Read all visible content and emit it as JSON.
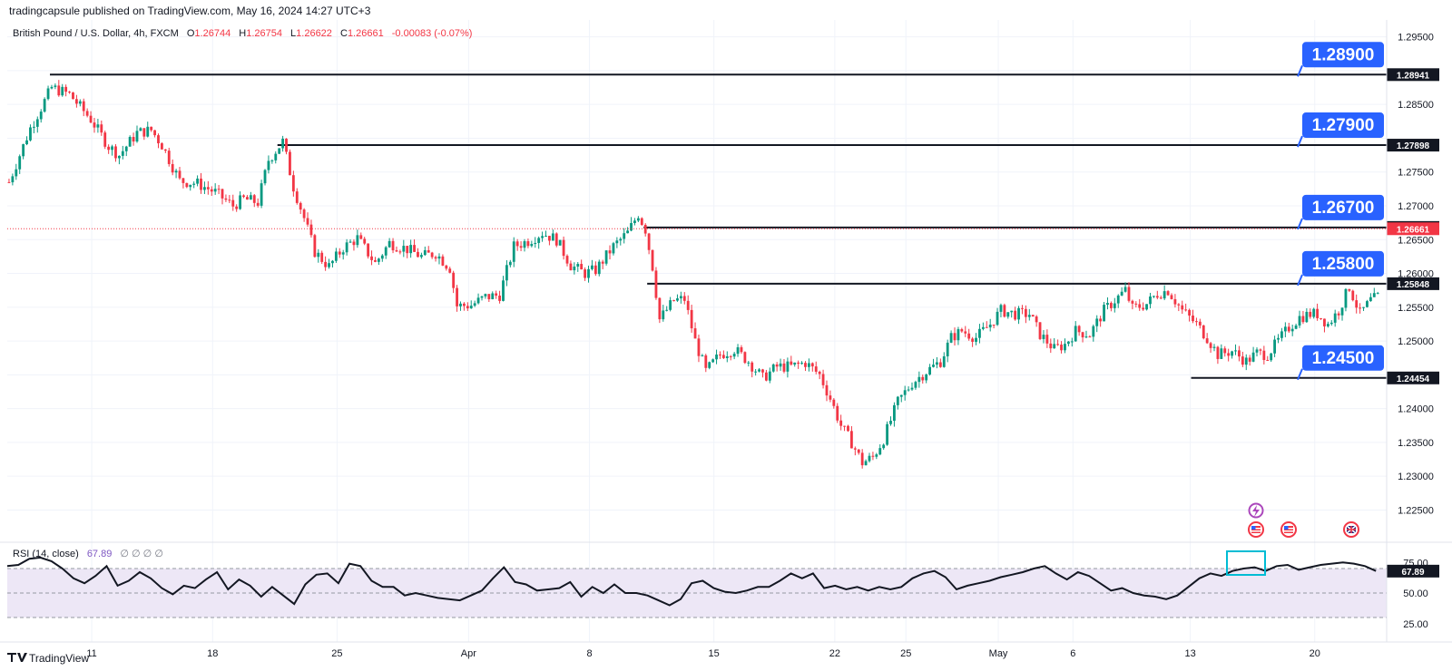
{
  "header": {
    "publisher": "tradingcapsule published on TradingView.com, May 16, 2024 14:27 UTC+3",
    "symbol": "British Pound / U.S. Dollar, 4h, FXCM",
    "open_label": "O",
    "open": "1.26744",
    "high_label": "H",
    "high": "1.26754",
    "low_label": "L",
    "low": "1.26622",
    "close_label": "C",
    "close": "1.26661",
    "change": "-0.00083 (-0.07%)"
  },
  "footer": {
    "brand": "TradingView"
  },
  "rsi": {
    "label": "RSI (14, close)",
    "value": "67.89",
    "extra": "∅ ∅ ∅ ∅"
  },
  "colors": {
    "up": "#089981",
    "down": "#f23645",
    "callout": "#2962ff",
    "rsi_fill": "#ede7f6",
    "rsi_highlight": "#00bcd4",
    "price_tag": "#f23645"
  },
  "icons": [
    "lightning-event-icon",
    "us-flag-icon",
    "us-flag-icon",
    "uk-flag-icon"
  ],
  "chart_data": [
    {
      "type": "candlestick",
      "title": "British Pound / U.S. Dollar, 4h, FXCM",
      "x_ticks": [
        "11",
        "18",
        "25",
        "Apr",
        "8",
        "15",
        "22",
        "25",
        "May",
        "6",
        "13",
        "20"
      ],
      "y_ticks": [
        "1.29500",
        "1.29000",
        "1.28500",
        "1.28000",
        "1.27500",
        "1.27000",
        "1.26500",
        "1.26000",
        "1.25500",
        "1.25000",
        "1.24500",
        "1.24000",
        "1.23500",
        "1.23000",
        "1.22500"
      ],
      "ylim": [
        1.2205,
        1.2975
      ],
      "current_price": "1.26661",
      "price_path": [
        [
          0,
          1.2735
        ],
        [
          6,
          1.2815
        ],
        [
          12,
          1.2875
        ],
        [
          17,
          1.2865
        ],
        [
          23,
          1.2828
        ],
        [
          28,
          1.2788
        ],
        [
          31,
          1.2775
        ],
        [
          36,
          1.2808
        ],
        [
          40,
          1.2812
        ],
        [
          43,
          1.279
        ],
        [
          48,
          1.2737
        ],
        [
          53,
          1.2733
        ],
        [
          58,
          1.272
        ],
        [
          63,
          1.27
        ],
        [
          66,
          1.271
        ],
        [
          70,
          1.2705
        ],
        [
          73,
          1.2768
        ],
        [
          77,
          1.2795
        ],
        [
          80,
          1.2728
        ],
        [
          83,
          1.2682
        ],
        [
          86,
          1.2632
        ],
        [
          90,
          1.261
        ],
        [
          94,
          1.2638
        ],
        [
          98,
          1.2652
        ],
        [
          103,
          1.2615
        ],
        [
          107,
          1.2645
        ],
        [
          112,
          1.2636
        ],
        [
          116,
          1.2625
        ],
        [
          120,
          1.263
        ],
        [
          124,
          1.2608
        ],
        [
          126,
          1.2552
        ],
        [
          130,
          1.2553
        ],
        [
          134,
          1.2565
        ],
        [
          138,
          1.2568
        ],
        [
          142,
          1.264
        ],
        [
          146,
          1.2648
        ],
        [
          150,
          1.266
        ],
        [
          154,
          1.265
        ],
        [
          158,
          1.2612
        ],
        [
          162,
          1.26
        ],
        [
          165,
          1.2605
        ],
        [
          170,
          1.264
        ],
        [
          174,
          1.266
        ],
        [
          177,
          1.2688
        ],
        [
          179,
          1.2665
        ],
        [
          181,
          1.261
        ],
        [
          183,
          1.2532
        ],
        [
          187,
          1.256
        ],
        [
          190,
          1.2562
        ],
        [
          193,
          1.25
        ],
        [
          196,
          1.2455
        ],
        [
          200,
          1.248
        ],
        [
          204,
          1.2488
        ],
        [
          208,
          1.247
        ],
        [
          212,
          1.2445
        ],
        [
          216,
          1.2462
        ],
        [
          220,
          1.2462
        ],
        [
          224,
          1.2468
        ],
        [
          228,
          1.245
        ],
        [
          231,
          1.2415
        ],
        [
          234,
          1.2375
        ],
        [
          237,
          1.235
        ],
        [
          240,
          1.232
        ],
        [
          243,
          1.2328
        ],
        [
          246,
          1.2355
        ],
        [
          250,
          1.241
        ],
        [
          254,
          1.2438
        ],
        [
          258,
          1.2455
        ],
        [
          262,
          1.247
        ],
        [
          265,
          1.2505
        ],
        [
          268,
          1.2515
        ],
        [
          272,
          1.2505
        ],
        [
          276,
          1.2525
        ],
        [
          279,
          1.2545
        ],
        [
          283,
          1.254
        ],
        [
          287,
          1.254
        ],
        [
          290,
          1.251
        ],
        [
          294,
          1.2488
        ],
        [
          297,
          1.2495
        ],
        [
          300,
          1.2515
        ],
        [
          304,
          1.251
        ],
        [
          308,
          1.2545
        ],
        [
          311,
          1.256
        ],
        [
          314,
          1.2575
        ],
        [
          316,
          1.2548
        ],
        [
          320,
          1.2555
        ],
        [
          323,
          1.257
        ],
        [
          326,
          1.2575
        ],
        [
          330,
          1.2545
        ],
        [
          334,
          1.2525
        ],
        [
          337,
          1.2505
        ],
        [
          340,
          1.248
        ],
        [
          344,
          1.2485
        ],
        [
          348,
          1.247
        ],
        [
          351,
          1.2482
        ],
        [
          354,
          1.248
        ],
        [
          357,
          1.25
        ],
        [
          360,
          1.252
        ],
        [
          363,
          1.2535
        ],
        [
          366,
          1.254
        ],
        [
          368,
          1.254
        ],
        [
          371,
          1.2525
        ],
        [
          374,
          1.2545
        ],
        [
          377,
          1.258
        ],
        [
          380,
          1.254
        ],
        [
          383,
          1.256
        ],
        [
          385,
          1.2565
        ]
      ],
      "levels": [
        {
          "tag": "1.28941",
          "callout": "1.28900",
          "value": 1.28941,
          "from_x": 12
        },
        {
          "tag": "1.27898",
          "callout": "1.27900",
          "value": 1.27898,
          "from_x": 76
        },
        {
          "tag": "1.26680",
          "callout": "1.26700",
          "value": 1.2668,
          "from_x": 179
        },
        {
          "tag": "1.25848",
          "callout": "1.25800",
          "value": 1.25848,
          "from_x": 180
        },
        {
          "tag": "1.24454",
          "callout": "1.24500",
          "value": 1.24454,
          "from_x": 333
        }
      ]
    },
    {
      "type": "line",
      "title": "RSI (14, close)",
      "y_ticks": [
        "75.00",
        "50.00",
        "25.00"
      ],
      "ylim": [
        10,
        90
      ],
      "band": [
        30,
        70
      ],
      "last_value": "67.89",
      "values": [
        72,
        73,
        78,
        79,
        76,
        70,
        62,
        58,
        64,
        72,
        56,
        60,
        67,
        62,
        54,
        49,
        56,
        54,
        61,
        67,
        53,
        61,
        56,
        47,
        55,
        48,
        41,
        57,
        65,
        66,
        58,
        74,
        72,
        60,
        55,
        55,
        48,
        50,
        48,
        46,
        45,
        44,
        48,
        52,
        62,
        71,
        59,
        57,
        52,
        53,
        54,
        59,
        47,
        55,
        50,
        57,
        50,
        50,
        48,
        44,
        40,
        45,
        58,
        60,
        54,
        51,
        50,
        52,
        55,
        55,
        60,
        66,
        62,
        66,
        54,
        56,
        53,
        55,
        52,
        55,
        53,
        55,
        62,
        66,
        68,
        63,
        53,
        56,
        58,
        60,
        63,
        65,
        67,
        70,
        72,
        66,
        61,
        67,
        64,
        58,
        52,
        54,
        50,
        48,
        47,
        45,
        48,
        55,
        62,
        66,
        64,
        68,
        70,
        71,
        68,
        72,
        73,
        69,
        71,
        73,
        74,
        75,
        74,
        72,
        68
      ]
    }
  ]
}
